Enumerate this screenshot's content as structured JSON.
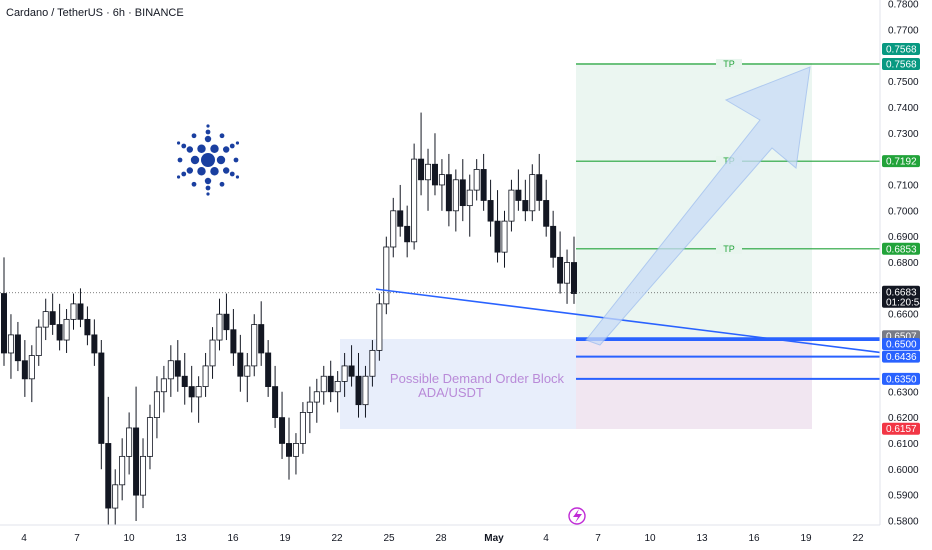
{
  "header": {
    "symbol_title": "Cardano / TetherUS · 6h · BINANCE"
  },
  "chart_data": {
    "type": "candlestick",
    "ylim": [
      0.575,
      0.78
    ],
    "y_ticks": [
      "0.7800",
      "0.7700",
      "0.7500",
      "0.7400",
      "0.7300",
      "0.7100",
      "0.7000",
      "0.6900",
      "0.6800",
      "0.6600",
      "0.6500",
      "0.6300",
      "0.6200",
      "0.6100",
      "0.6000",
      "0.5900",
      "0.5800"
    ],
    "x_ticks": [
      "4",
      "7",
      "10",
      "13",
      "16",
      "19",
      "22",
      "25",
      "28",
      "May",
      "4",
      "7",
      "10",
      "13",
      "16",
      "19",
      "22"
    ],
    "current_price": "0.6683",
    "countdown": "01:20:54",
    "levels": [
      {
        "price": 0.7568,
        "label": "0.7568",
        "color": "#089981",
        "kind": "tp"
      },
      {
        "price": 0.7192,
        "label": "0.7192",
        "color": "#22a33a",
        "kind": "tp"
      },
      {
        "price": 0.6853,
        "label": "0.6853",
        "color": "#22a33a",
        "kind": "tp"
      },
      {
        "price": 0.6507,
        "label": "0.6507",
        "color": "#787b86",
        "kind": "line"
      },
      {
        "price": 0.65,
        "label": "0.6500",
        "color": "#2962ff",
        "kind": "line"
      },
      {
        "price": 0.6436,
        "label": "0.6436",
        "color": "#2962ff",
        "kind": "line"
      },
      {
        "price": 0.635,
        "label": "0.6350",
        "color": "#2962ff",
        "kind": "line"
      },
      {
        "price": 0.6157,
        "label": "0.6157",
        "color": "#f23645",
        "kind": "stop"
      }
    ],
    "extra_top_tag": "0.7568",
    "tp_label": "TP",
    "zone_text_1": "Possible Demand Order Block",
    "zone_text_2": "ADA/USDT",
    "candles": [
      [
        0.668,
        0.682,
        0.64,
        0.645
      ],
      [
        0.645,
        0.66,
        0.635,
        0.652
      ],
      [
        0.652,
        0.657,
        0.638,
        0.642
      ],
      [
        0.642,
        0.65,
        0.628,
        0.635
      ],
      [
        0.635,
        0.648,
        0.626,
        0.644
      ],
      [
        0.644,
        0.658,
        0.64,
        0.655
      ],
      [
        0.655,
        0.666,
        0.65,
        0.661
      ],
      [
        0.661,
        0.668,
        0.652,
        0.656
      ],
      [
        0.656,
        0.664,
        0.646,
        0.65
      ],
      [
        0.65,
        0.662,
        0.645,
        0.658
      ],
      [
        0.658,
        0.668,
        0.654,
        0.664
      ],
      [
        0.664,
        0.67,
        0.655,
        0.658
      ],
      [
        0.658,
        0.663,
        0.648,
        0.652
      ],
      [
        0.652,
        0.658,
        0.64,
        0.645
      ],
      [
        0.645,
        0.65,
        0.6,
        0.61
      ],
      [
        0.61,
        0.628,
        0.576,
        0.585
      ],
      [
        0.585,
        0.6,
        0.576,
        0.594
      ],
      [
        0.594,
        0.612,
        0.588,
        0.605
      ],
      [
        0.605,
        0.622,
        0.598,
        0.616
      ],
      [
        0.616,
        0.632,
        0.58,
        0.59
      ],
      [
        0.59,
        0.612,
        0.585,
        0.605
      ],
      [
        0.605,
        0.625,
        0.6,
        0.62
      ],
      [
        0.62,
        0.636,
        0.612,
        0.63
      ],
      [
        0.63,
        0.64,
        0.622,
        0.635
      ],
      [
        0.635,
        0.648,
        0.628,
        0.642
      ],
      [
        0.642,
        0.65,
        0.63,
        0.636
      ],
      [
        0.636,
        0.645,
        0.625,
        0.632
      ],
      [
        0.632,
        0.64,
        0.622,
        0.628
      ],
      [
        0.628,
        0.636,
        0.618,
        0.632
      ],
      [
        0.632,
        0.645,
        0.628,
        0.64
      ],
      [
        0.64,
        0.655,
        0.635,
        0.65
      ],
      [
        0.65,
        0.666,
        0.646,
        0.66
      ],
      [
        0.66,
        0.668,
        0.65,
        0.654
      ],
      [
        0.654,
        0.662,
        0.64,
        0.645
      ],
      [
        0.645,
        0.652,
        0.63,
        0.636
      ],
      [
        0.636,
        0.645,
        0.626,
        0.64
      ],
      [
        0.64,
        0.66,
        0.636,
        0.656
      ],
      [
        0.656,
        0.665,
        0.64,
        0.645
      ],
      [
        0.645,
        0.65,
        0.628,
        0.632
      ],
      [
        0.632,
        0.64,
        0.616,
        0.62
      ],
      [
        0.62,
        0.63,
        0.604,
        0.61
      ],
      [
        0.61,
        0.62,
        0.596,
        0.605
      ],
      [
        0.605,
        0.614,
        0.598,
        0.61
      ],
      [
        0.61,
        0.626,
        0.606,
        0.622
      ],
      [
        0.622,
        0.632,
        0.614,
        0.626
      ],
      [
        0.626,
        0.635,
        0.618,
        0.63
      ],
      [
        0.63,
        0.64,
        0.625,
        0.636
      ],
      [
        0.636,
        0.642,
        0.626,
        0.63
      ],
      [
        0.63,
        0.638,
        0.622,
        0.634
      ],
      [
        0.634,
        0.645,
        0.628,
        0.64
      ],
      [
        0.64,
        0.648,
        0.632,
        0.636
      ],
      [
        0.636,
        0.645,
        0.62,
        0.625
      ],
      [
        0.625,
        0.64,
        0.62,
        0.636
      ],
      [
        0.636,
        0.65,
        0.632,
        0.646
      ],
      [
        0.646,
        0.668,
        0.642,
        0.664
      ],
      [
        0.664,
        0.69,
        0.66,
        0.686
      ],
      [
        0.686,
        0.705,
        0.682,
        0.7
      ],
      [
        0.7,
        0.71,
        0.69,
        0.694
      ],
      [
        0.694,
        0.702,
        0.682,
        0.688
      ],
      [
        0.688,
        0.726,
        0.685,
        0.72
      ],
      [
        0.72,
        0.738,
        0.706,
        0.712
      ],
      [
        0.712,
        0.724,
        0.7,
        0.718
      ],
      [
        0.718,
        0.73,
        0.706,
        0.71
      ],
      [
        0.71,
        0.72,
        0.7,
        0.714
      ],
      [
        0.714,
        0.722,
        0.694,
        0.7
      ],
      [
        0.7,
        0.716,
        0.692,
        0.712
      ],
      [
        0.712,
        0.72,
        0.696,
        0.702
      ],
      [
        0.702,
        0.714,
        0.69,
        0.708
      ],
      [
        0.708,
        0.72,
        0.704,
        0.716
      ],
      [
        0.716,
        0.722,
        0.7,
        0.704
      ],
      [
        0.704,
        0.712,
        0.69,
        0.696
      ],
      [
        0.696,
        0.708,
        0.68,
        0.684
      ],
      [
        0.684,
        0.7,
        0.678,
        0.696
      ],
      [
        0.696,
        0.712,
        0.692,
        0.708
      ],
      [
        0.708,
        0.716,
        0.7,
        0.704
      ],
      [
        0.704,
        0.712,
        0.696,
        0.7
      ],
      [
        0.7,
        0.718,
        0.696,
        0.714
      ],
      [
        0.714,
        0.722,
        0.7,
        0.704
      ],
      [
        0.704,
        0.712,
        0.69,
        0.694
      ],
      [
        0.694,
        0.7,
        0.678,
        0.682
      ],
      [
        0.682,
        0.692,
        0.668,
        0.672
      ],
      [
        0.672,
        0.685,
        0.664,
        0.68
      ],
      [
        0.68,
        0.69,
        0.664,
        0.668
      ]
    ]
  },
  "events": {
    "icon": "tradingview-event-icon"
  }
}
